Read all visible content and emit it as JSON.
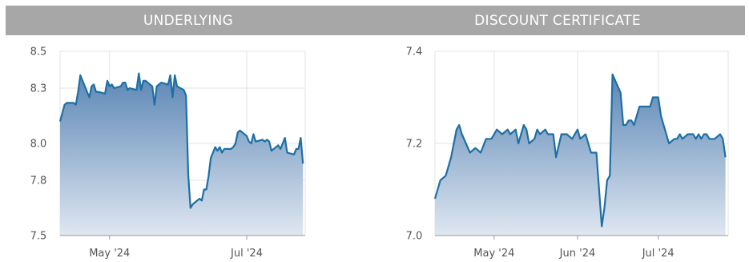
{
  "panels": [
    {
      "header": "UNDERLYING"
    },
    {
      "header": "DISCOUNT CERTIFICATE"
    }
  ],
  "colors": {
    "line": "#1d6fa5",
    "fill_top": "#5b86b5",
    "fill_bottom": "#dfe7f1",
    "grid": "#e3e3e3",
    "header_bg": "#a7a7a7"
  },
  "chart_data": [
    {
      "type": "area",
      "title": "UNDERLYING",
      "ylim": [
        7.5,
        8.5
      ],
      "yticks": [
        7.5,
        7.8,
        8.0,
        8.3,
        8.5
      ],
      "ytick_labels": [
        "7.5",
        "7.8",
        "8.0",
        "8.3",
        "8.5"
      ],
      "xlim": [
        "2024-04-09",
        "2024-07-27"
      ],
      "xticks": [
        "2024-05-01",
        "2024-07-01"
      ],
      "xtick_labels": [
        "May '24",
        "Jul '24"
      ],
      "grid": true,
      "x": [
        "2024-04-09",
        "2024-04-11",
        "2024-04-12",
        "2024-04-15",
        "2024-04-16",
        "2024-04-17",
        "2024-04-18",
        "2024-04-19",
        "2024-04-22",
        "2024-04-23",
        "2024-04-24",
        "2024-04-25",
        "2024-04-26",
        "2024-04-29",
        "2024-04-30",
        "2024-05-01",
        "2024-05-02",
        "2024-05-03",
        "2024-05-06",
        "2024-05-07",
        "2024-05-08",
        "2024-05-09",
        "2024-05-10",
        "2024-05-13",
        "2024-05-14",
        "2024-05-15",
        "2024-05-16",
        "2024-05-17",
        "2024-05-20",
        "2024-05-21",
        "2024-05-22",
        "2024-05-23",
        "2024-05-24",
        "2024-05-27",
        "2024-05-28",
        "2024-05-29",
        "2024-05-30",
        "2024-05-31",
        "2024-06-03",
        "2024-06-04",
        "2024-06-05",
        "2024-06-06",
        "2024-06-07",
        "2024-06-10",
        "2024-06-11",
        "2024-06-12",
        "2024-06-13",
        "2024-06-14",
        "2024-06-15",
        "2024-06-17",
        "2024-06-18",
        "2024-06-19",
        "2024-06-20",
        "2024-06-21",
        "2024-06-24",
        "2024-06-25",
        "2024-06-26",
        "2024-06-27",
        "2024-06-28",
        "2024-07-01",
        "2024-07-02",
        "2024-07-03",
        "2024-07-04",
        "2024-07-05",
        "2024-07-08",
        "2024-07-09",
        "2024-07-10",
        "2024-07-11",
        "2024-07-12",
        "2024-07-15",
        "2024-07-16",
        "2024-07-17",
        "2024-07-18",
        "2024-07-19",
        "2024-07-22",
        "2024-07-23",
        "2024-07-24",
        "2024-07-25",
        "2024-07-26"
      ],
      "values": [
        8.12,
        8.21,
        8.22,
        8.22,
        8.21,
        8.28,
        8.37,
        8.34,
        8.25,
        8.31,
        8.32,
        8.28,
        8.28,
        8.27,
        8.34,
        8.31,
        8.32,
        8.3,
        8.31,
        8.33,
        8.33,
        8.29,
        8.3,
        8.29,
        8.38,
        8.29,
        8.34,
        8.34,
        8.31,
        8.21,
        8.31,
        8.32,
        8.33,
        8.32,
        8.37,
        8.25,
        8.37,
        8.31,
        8.29,
        8.26,
        7.83,
        7.65,
        7.67,
        7.7,
        7.69,
        7.75,
        7.75,
        7.82,
        7.92,
        7.98,
        7.96,
        7.98,
        7.95,
        7.97,
        7.97,
        7.98,
        8.0,
        8.06,
        8.07,
        8.04,
        8.01,
        8.0,
        8.05,
        8.01,
        8.02,
        8.01,
        8.02,
        8.01,
        7.96,
        7.99,
        7.97,
        8.0,
        8.03,
        7.95,
        7.94,
        7.97,
        7.97,
        8.03,
        7.89
      ]
    },
    {
      "type": "area",
      "title": "DISCOUNT CERTIFICATE",
      "ylim": [
        7.0,
        7.4
      ],
      "yticks": [
        7.0,
        7.2,
        7.4
      ],
      "ytick_labels": [
        "7.0",
        "7.2",
        "7.4"
      ],
      "xlim": [
        "2024-04-09",
        "2024-07-27"
      ],
      "xticks": [
        "2024-05-01",
        "2024-06-01",
        "2024-07-01"
      ],
      "xtick_labels": [
        "May '24",
        "Jun '24",
        "Jul '24"
      ],
      "grid": true,
      "x": [
        "2024-04-09",
        "2024-04-11",
        "2024-04-13",
        "2024-04-15",
        "2024-04-17",
        "2024-04-18",
        "2024-04-19",
        "2024-04-22",
        "2024-04-24",
        "2024-04-26",
        "2024-04-28",
        "2024-04-30",
        "2024-05-02",
        "2024-05-04",
        "2024-05-06",
        "2024-05-07",
        "2024-05-09",
        "2024-05-10",
        "2024-05-12",
        "2024-05-13",
        "2024-05-14",
        "2024-05-16",
        "2024-05-17",
        "2024-05-18",
        "2024-05-20",
        "2024-05-21",
        "2024-05-23",
        "2024-05-24",
        "2024-05-26",
        "2024-05-28",
        "2024-05-30",
        "2024-06-01",
        "2024-06-02",
        "2024-06-04",
        "2024-06-06",
        "2024-06-08",
        "2024-06-10",
        "2024-06-11",
        "2024-06-12",
        "2024-06-13",
        "2024-06-14",
        "2024-06-17",
        "2024-06-18",
        "2024-06-19",
        "2024-06-20",
        "2024-06-21",
        "2024-06-22",
        "2024-06-24",
        "2024-06-25",
        "2024-06-26",
        "2024-06-27",
        "2024-06-28",
        "2024-06-29",
        "2024-07-01",
        "2024-07-02",
        "2024-07-03",
        "2024-07-05",
        "2024-07-07",
        "2024-07-08",
        "2024-07-09",
        "2024-07-10",
        "2024-07-12",
        "2024-07-14",
        "2024-07-15",
        "2024-07-16",
        "2024-07-17",
        "2024-07-18",
        "2024-07-19",
        "2024-07-20",
        "2024-07-22",
        "2024-07-24",
        "2024-07-25",
        "2024-07-26"
      ],
      "values": [
        7.08,
        7.12,
        7.13,
        7.17,
        7.23,
        7.24,
        7.22,
        7.18,
        7.19,
        7.18,
        7.21,
        7.21,
        7.23,
        7.22,
        7.23,
        7.22,
        7.23,
        7.2,
        7.24,
        7.23,
        7.2,
        7.21,
        7.23,
        7.22,
        7.23,
        7.22,
        7.22,
        7.17,
        7.22,
        7.22,
        7.21,
        7.23,
        7.21,
        7.22,
        7.18,
        7.18,
        7.02,
        7.06,
        7.12,
        7.13,
        7.35,
        7.31,
        7.24,
        7.24,
        7.25,
        7.25,
        7.24,
        7.28,
        7.28,
        7.28,
        7.28,
        7.28,
        7.3,
        7.3,
        7.26,
        7.24,
        7.2,
        7.21,
        7.21,
        7.22,
        7.21,
        7.22,
        7.22,
        7.21,
        7.22,
        7.21,
        7.22,
        7.22,
        7.21,
        7.21,
        7.22,
        7.21,
        7.17
      ]
    }
  ]
}
